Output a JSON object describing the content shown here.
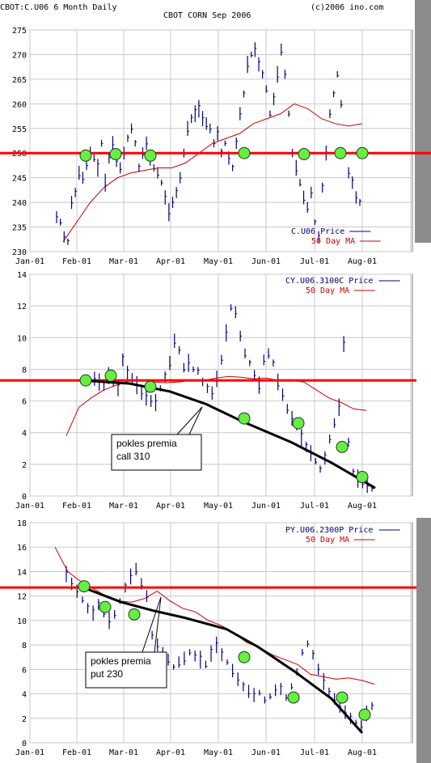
{
  "header": {
    "left": "CBOT:C.U06 6 Month Daily",
    "center": "CBOT CORN Sep 2006",
    "right": "(c)2006 ino.com"
  },
  "colors": {
    "price": "#00007a",
    "ma": "#cc0000",
    "ref": "#ff0000",
    "marker": "#66ee44",
    "curve": "#000000",
    "grid": "#c8c8c8",
    "frame": "#808080"
  },
  "chart_data": [
    {
      "type": "line",
      "series": [
        {
          "name": "C.U06 Price",
          "kind": "ohlc-bars",
          "y": [
            237,
            236,
            233,
            232,
            240,
            242,
            246,
            245,
            248,
            250,
            249,
            247,
            252,
            244,
            249,
            252,
            248,
            247,
            250,
            253,
            255,
            252,
            247,
            250,
            252,
            249,
            247,
            246,
            244,
            241,
            238,
            240,
            242,
            245,
            250,
            255,
            257,
            258,
            259,
            257,
            256,
            255,
            252,
            254,
            250,
            252,
            249,
            247,
            252,
            258,
            262,
            268,
            270,
            271,
            268,
            266,
            263,
            258,
            261,
            266,
            271,
            266,
            258,
            250,
            247,
            244,
            241,
            239,
            242,
            236,
            233,
            243,
            250,
            258,
            262,
            266,
            260,
            250,
            246,
            244,
            241,
            240
          ]
        },
        {
          "name": "50 Day MA",
          "y": [
            232,
            236,
            240,
            243,
            245,
            246,
            246.5,
            247,
            247,
            248,
            250,
            252,
            253,
            254,
            256,
            257,
            258,
            260,
            259,
            257,
            256,
            255.5,
            256
          ]
        }
      ],
      "reference_level": 250,
      "markers_y": [
        249.5,
        249.8,
        249.5,
        250,
        249.8,
        250,
        250
      ],
      "legend": [
        "C.U06 Price",
        "50 Day MA"
      ],
      "x_ticks": [
        "Jan-01",
        "Feb-01",
        "Mar-01",
        "Apr-01",
        "May-01",
        "Jun-01",
        "Jul-01",
        "Aug-01"
      ],
      "ylim": [
        230,
        275
      ],
      "y_ticks": [
        230,
        235,
        240,
        245,
        250,
        255,
        260,
        265,
        270,
        275
      ],
      "grid": true,
      "legend_position": "bottom-right"
    },
    {
      "type": "line",
      "series": [
        {
          "name": "CY.U06.3100C Price",
          "kind": "ohlc-bars",
          "y": [
            null,
            null,
            null,
            null,
            null,
            null,
            7.4,
            7.2,
            7.0,
            7.6,
            7.3,
            6.8,
            8.6,
            7.8,
            7.4,
            7.0,
            6.5,
            6.2,
            6.0,
            5.9,
            6.8,
            7.5,
            8.4,
            9.8,
            9.2,
            8.1,
            8.4,
            8.0,
            7.9,
            7.2,
            6.8,
            6.5,
            7.4,
            8.6,
            10.3,
            11.9,
            11.6,
            10.1,
            9.0,
            8.4,
            7.6,
            7.0,
            8.6,
            9.0,
            8.4,
            7.2,
            6.4,
            5.5,
            4.9,
            4.4,
            3.7,
            3.1,
            2.7,
            2.2,
            1.7,
            2.4,
            3.6,
            4.6,
            5.6,
            9.6,
            3.4,
            1.5,
            1.1,
            0.8,
            0.6,
            0.5
          ]
        },
        {
          "name": "50 Day MA",
          "y": [
            3.8,
            5.6,
            6.2,
            6.7,
            7.0,
            7.25,
            7.3,
            7.2,
            7.15,
            7.2,
            7.3,
            7.3,
            7.45,
            7.55,
            7.5,
            7.4,
            7.45,
            7.3,
            7.3,
            7.2,
            6.7,
            6.2,
            5.9,
            5.5,
            5.4
          ]
        },
        {
          "name": "pokles premia call 310",
          "kind": "trend-curve",
          "y": [
            7.3,
            7.1,
            6.6,
            5.8,
            4.7,
            3.4,
            2.1,
            0.5
          ]
        }
      ],
      "reference_level": 7.3,
      "markers_y": [
        7.3,
        7.6,
        6.9,
        4.9,
        4.6,
        3.1,
        1.2
      ],
      "legend": [
        "CY.U06.3100C Price",
        "50 Day MA"
      ],
      "annotation": [
        "pokles premia",
        "call 310"
      ],
      "x_ticks": [
        "Jan-01",
        "Feb-01",
        "Mar-01",
        "Apr-01",
        "May-01",
        "Jun-01",
        "Jul-01",
        "Aug-01"
      ],
      "ylim": [
        0,
        14
      ],
      "y_ticks": [
        0,
        2,
        4,
        6,
        8,
        10,
        12,
        14
      ],
      "grid": true,
      "legend_position": "top-right"
    },
    {
      "type": "line",
      "series": [
        {
          "name": "PY.U06.2300P Price",
          "kind": "ohlc-bars",
          "y": [
            13.8,
            13.0,
            12.4,
            11.7,
            11.0,
            10.6,
            11.3,
            10.7,
            10.0,
            10.5,
            11.6,
            12.7,
            13.6,
            14.2,
            13.0,
            12.0,
            8.8,
            8.0,
            7.3,
            6.8,
            6.2,
            6.6,
            6.9,
            7.4,
            7.1,
            6.8,
            6.4,
            7.3,
            8.0,
            7.2,
            6.6,
            5.9,
            5.2,
            4.6,
            4.2,
            3.9,
            4.1,
            3.5,
            3.8,
            4.3,
            4.4,
            3.7,
            4.6,
            5.8,
            7.4,
            8.1,
            7.2,
            6.0,
            5.0,
            4.1,
            3.6,
            3.1,
            2.5,
            2.0,
            1.6,
            1.4,
            2.4,
            3.0
          ]
        },
        {
          "name": "50 Day MA",
          "y": [
            16.0,
            14.0,
            13.2,
            12.6,
            12.0,
            11.6,
            11.5,
            11.8,
            12.4,
            11.6,
            11.0,
            10.7,
            10.0,
            9.6,
            9.0,
            8.2,
            7.8,
            7.2,
            6.8,
            6.4,
            5.6,
            5.4,
            5.2,
            5.3,
            5.1,
            4.8
          ]
        },
        {
          "name": "pokles premia put 230",
          "kind": "trend-curve",
          "y": [
            12.7,
            11.5,
            10.8,
            10.2,
            9.3,
            7.8,
            5.8,
            3.6,
            0.8
          ]
        }
      ],
      "reference_level": 12.7,
      "markers_y": [
        12.8,
        11.1,
        10.5,
        7.0,
        3.7,
        3.7,
        2.3
      ],
      "legend": [
        "PY.U06.2300P Price",
        "50 Day MA"
      ],
      "annotation": [
        "pokles premia",
        "put 230"
      ],
      "x_ticks": [
        "Jan-01",
        "Feb-01",
        "Mar-01",
        "Apr-01",
        "May-01",
        "Jun-01",
        "Jul-01",
        "Aug-01"
      ],
      "ylim": [
        0,
        18
      ],
      "y_ticks": [
        0,
        2,
        4,
        6,
        8,
        10,
        12,
        14,
        16,
        18
      ],
      "grid": true,
      "legend_position": "top-right"
    }
  ]
}
